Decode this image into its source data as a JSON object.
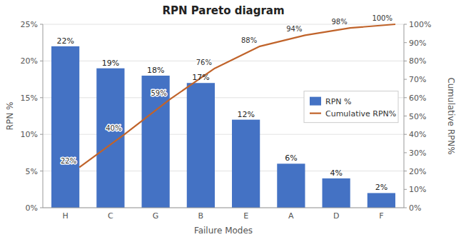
{
  "chart_data": {
    "type": "bar",
    "title": "RPN Pareto diagram",
    "x_label": "Failure Modes",
    "y_label": "RPN %",
    "y2_label": "Cumulative RPN%",
    "categories": [
      "H",
      "C",
      "G",
      "B",
      "E",
      "A",
      "D",
      "F"
    ],
    "series": [
      {
        "name": "RPN %",
        "type": "bar",
        "color": "#4472C4",
        "values": [
          22,
          19,
          18,
          17,
          12,
          6,
          4,
          2
        ],
        "value_labels": [
          "22%",
          "19%",
          "18%",
          "17%",
          "12%",
          "6%",
          "4%",
          "2%"
        ]
      },
      {
        "name": "Cumulative RPN%",
        "type": "line",
        "color": "#C0632A",
        "axis": "y2",
        "values": [
          22,
          40,
          59,
          76,
          88,
          94,
          98,
          100
        ],
        "value_labels": [
          "22%",
          "40%",
          "59%",
          "76%",
          "88%",
          "94%",
          "98%",
          "100%"
        ]
      }
    ],
    "ylim": [
      0,
      25
    ],
    "yticks": [
      {
        "value": 0,
        "label": "0%"
      },
      {
        "value": 5,
        "label": "5%"
      },
      {
        "value": 10,
        "label": "10%"
      },
      {
        "value": 15,
        "label": "15%"
      },
      {
        "value": 20,
        "label": "20%"
      },
      {
        "value": 25,
        "label": "25%"
      }
    ],
    "y2lim": [
      0,
      100
    ],
    "y2ticks": [
      {
        "value": 0,
        "label": "0%"
      },
      {
        "value": 10,
        "label": "10%"
      },
      {
        "value": 20,
        "label": "20%"
      },
      {
        "value": 30,
        "label": "30%"
      },
      {
        "value": 40,
        "label": "40%"
      },
      {
        "value": 50,
        "label": "50%"
      },
      {
        "value": 60,
        "label": "60%"
      },
      {
        "value": 70,
        "label": "70%"
      },
      {
        "value": 80,
        "label": "80%"
      },
      {
        "value": 90,
        "label": "90%"
      },
      {
        "value": 100,
        "label": "100%"
      }
    ],
    "grid": true,
    "legend": "right",
    "data_labels": true
  }
}
